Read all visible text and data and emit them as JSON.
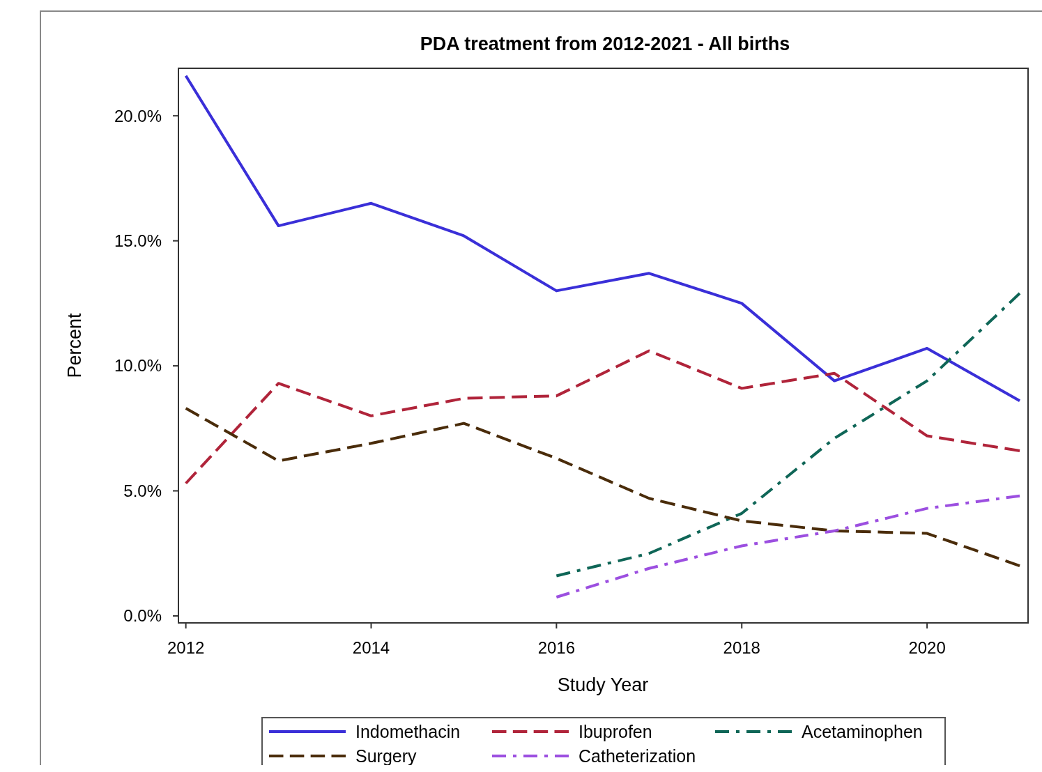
{
  "chart_data": {
    "type": "line",
    "title": "PDA treatment from 2012-2021 - All births",
    "xlabel": "Study Year",
    "ylabel": "Percent",
    "x": [
      2012,
      2013,
      2014,
      2015,
      2016,
      2017,
      2018,
      2019,
      2020,
      2021
    ],
    "xlim": [
      2011.92,
      2021.09
    ],
    "xticks": [
      2012,
      2014,
      2016,
      2018,
      2020
    ],
    "ylim": [
      -0.28,
      21.9
    ],
    "yticks": [
      {
        "value": 0,
        "label": "0.0%"
      },
      {
        "value": 5,
        "label": "5.0%"
      },
      {
        "value": 10,
        "label": "10.0%"
      },
      {
        "value": 15,
        "label": "15.0%"
      },
      {
        "value": 20,
        "label": "20.0%"
      }
    ],
    "grid": false,
    "legend": "bottom",
    "marker": "none",
    "series": [
      {
        "name": "Indomethacin",
        "color": "#3a2fd8",
        "line_style": "solid",
        "values": [
          21.6,
          15.6,
          16.5,
          15.2,
          13.0,
          13.7,
          12.5,
          9.4,
          10.7,
          8.6
        ]
      },
      {
        "name": "Ibuprofen",
        "color": "#b0243a",
        "line_style": "dashed",
        "values": [
          5.3,
          9.3,
          8.0,
          8.7,
          8.8,
          10.6,
          9.1,
          9.7,
          7.2,
          6.6
        ]
      },
      {
        "name": "Acetaminophen",
        "color": "#0f6657",
        "line_style": "dashdot",
        "values": [
          null,
          null,
          null,
          null,
          1.6,
          2.5,
          4.1,
          7.1,
          9.4,
          12.9
        ]
      },
      {
        "name": "Surgery",
        "color": "#4a2c0a",
        "line_style": "dashed",
        "values": [
          8.3,
          6.2,
          6.9,
          7.7,
          6.3,
          4.7,
          3.8,
          3.4,
          3.3,
          2.0
        ]
      },
      {
        "name": "Catheterization",
        "color": "#9c4fe0",
        "line_style": "dashdot",
        "values": [
          null,
          null,
          null,
          null,
          0.75,
          1.9,
          2.8,
          3.4,
          4.3,
          4.8
        ]
      }
    ]
  }
}
